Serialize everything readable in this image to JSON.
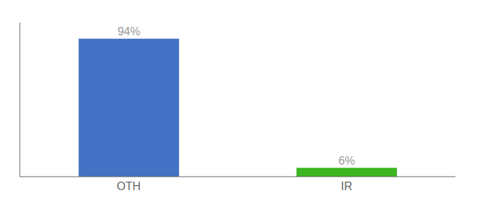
{
  "chart_data": {
    "type": "bar",
    "categories": [
      "OTH",
      "IR"
    ],
    "values": [
      94,
      6
    ],
    "colors": [
      "#4472c4",
      "#3cb520"
    ],
    "value_labels": [
      "94%",
      "6%"
    ],
    "data_labels": true,
    "ylim": [
      0,
      105
    ],
    "tick_labels": "x"
  }
}
